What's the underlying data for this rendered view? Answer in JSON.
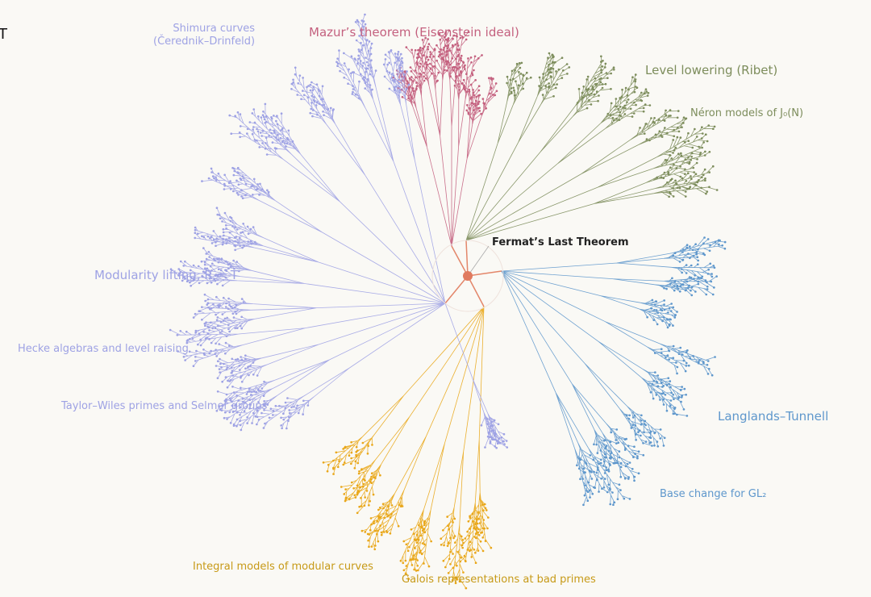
{
  "edge_title": "T",
  "center": {
    "label": "Fermat’s Last Theorem"
  },
  "topics": [
    {
      "lines": [
        "Shimura curves",
        "(Čerednik–Drinfeld)"
      ]
    },
    {
      "lines": [
        "Mazur’s theorem (Eisenstein ideal)"
      ]
    },
    {
      "lines": [
        "Level lowering (Ribet)"
      ]
    },
    {
      "lines": [
        "Néron models of J₀(N)"
      ]
    },
    {
      "lines": [
        "Modularity lifting, R = T"
      ]
    },
    {
      "lines": [
        "Hecke algebras and level raising"
      ]
    },
    {
      "lines": [
        "Taylor–Wiles primes and Selmer groups"
      ]
    },
    {
      "lines": [
        "Langlands–Tunnell"
      ]
    },
    {
      "lines": [
        "Base change for GL₂"
      ]
    },
    {
      "lines": [
        "Integral models of modular curves"
      ]
    },
    {
      "lines": [
        "Galois representations at bad primes"
      ]
    }
  ]
}
